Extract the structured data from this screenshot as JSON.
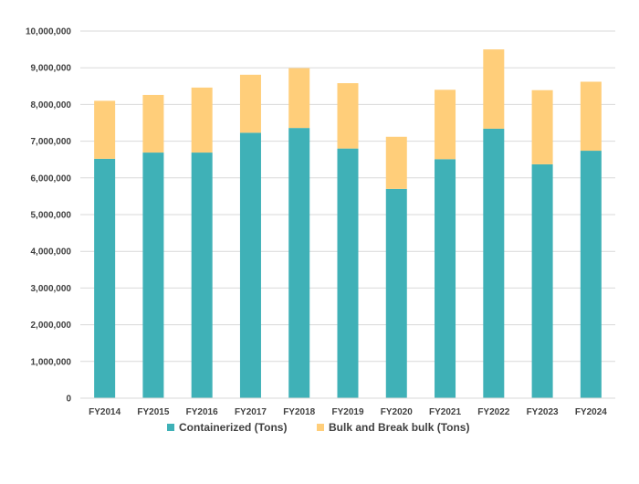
{
  "chart_data": {
    "type": "bar",
    "stacked": true,
    "categories": [
      "FY2014",
      "FY2015",
      "FY2016",
      "FY2017",
      "FY2018",
      "FY2019",
      "FY2020",
      "FY2021",
      "FY2022",
      "FY2023",
      "FY2024"
    ],
    "series": [
      {
        "name": "Containerized (Tons)",
        "color": "#3FB1B7",
        "values": [
          6520000,
          6690000,
          6690000,
          7230000,
          7360000,
          6800000,
          5700000,
          6510000,
          7340000,
          6370000,
          6740000
        ]
      },
      {
        "name": "Bulk and Break bulk (Tons)",
        "color": "#FFCE7A",
        "values": [
          1580000,
          1570000,
          1770000,
          1580000,
          1630000,
          1780000,
          1420000,
          1890000,
          2160000,
          2020000,
          1880000
        ]
      }
    ],
    "ylim": [
      0,
      10000000
    ],
    "yticks": [
      "0",
      "1,000,000",
      "2,000,000",
      "3,000,000",
      "4,000,000",
      "5,000,000",
      "6,000,000",
      "7,000,000",
      "8,000,000",
      "9,000,000",
      "10,000,000"
    ],
    "grid": true,
    "legend": "bottom-center",
    "title": "",
    "xlabel": "",
    "ylabel": ""
  }
}
